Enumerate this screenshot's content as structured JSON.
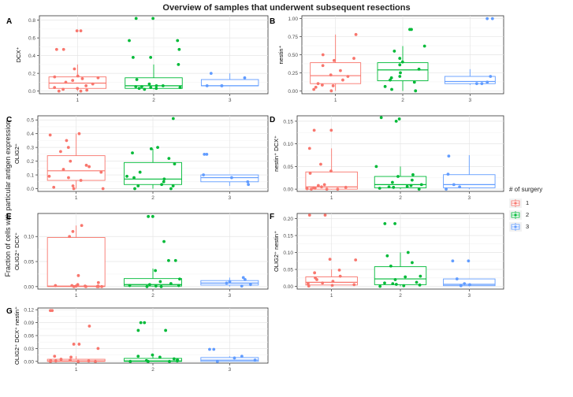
{
  "title": "Overview of samples that underwent subsequent resections",
  "shared_ylabel": "Fraction of cells with particular antigen expression",
  "legend": {
    "title": "# of surgery",
    "items": [
      {
        "label": "1",
        "color": "#F8766D"
      },
      {
        "label": "2",
        "color": "#00BA38"
      },
      {
        "label": "3",
        "color": "#619CFF"
      }
    ]
  },
  "chart_data": [
    {
      "type": "box",
      "panel": "A",
      "ylabel": "DCX⁺",
      "categories": [
        "1",
        "2",
        "3"
      ],
      "ylim": [
        -0.03,
        0.85
      ],
      "yticks": [
        0.0,
        0.2,
        0.4,
        0.6,
        0.8
      ],
      "ytick_labels": [
        "0.0",
        "0.2",
        "0.4",
        "0.6",
        "0.8"
      ],
      "boxes": [
        {
          "q1": 0.03,
          "median": 0.09,
          "q3": 0.16,
          "whisker_low": 0.0,
          "whisker_high": 0.3
        },
        {
          "q1": 0.03,
          "median": 0.06,
          "q3": 0.15,
          "whisker_low": 0.02,
          "whisker_high": 0.3
        },
        {
          "q1": 0.06,
          "median": 0.06,
          "q3": 0.13,
          "whisker_low": 0.06,
          "whisker_high": 0.2
        }
      ],
      "points": [
        [
          0.68,
          0.68,
          0.47,
          0.47,
          0.25,
          0.17,
          0.16,
          0.15,
          0.14,
          0.12,
          0.1,
          0.08,
          0.06,
          0.04,
          0.03,
          0.02,
          0.01,
          0.0,
          0.0
        ],
        [
          0.82,
          0.82,
          0.57,
          0.57,
          0.47,
          0.38,
          0.38,
          0.3,
          0.13,
          0.08,
          0.06,
          0.06,
          0.05,
          0.05,
          0.04,
          0.04,
          0.03,
          0.03,
          0.02
        ],
        [
          0.2,
          0.15,
          0.06,
          0.06,
          0.06
        ]
      ]
    },
    {
      "type": "box",
      "panel": "B",
      "ylabel": "nestin⁺",
      "categories": [
        "1",
        "2",
        "3"
      ],
      "ylim": [
        -0.04,
        1.04
      ],
      "yticks": [
        0.0,
        0.25,
        0.5,
        0.75,
        1.0
      ],
      "ytick_labels": [
        "0.00",
        "0.25",
        "0.50",
        "0.75",
        "1.00"
      ],
      "boxes": [
        {
          "q1": 0.1,
          "median": 0.21,
          "q3": 0.39,
          "whisker_low": 0.0,
          "whisker_high": 0.78
        },
        {
          "q1": 0.14,
          "median": 0.29,
          "q3": 0.39,
          "whisker_low": 0.0,
          "whisker_high": 0.62
        },
        {
          "q1": 0.1,
          "median": 0.13,
          "q3": 0.2,
          "whisker_low": 0.08,
          "whisker_high": 0.3
        }
      ],
      "points": [
        [
          0.78,
          0.5,
          0.45,
          0.42,
          0.35,
          0.28,
          0.22,
          0.2,
          0.15,
          0.1,
          0.08,
          0.07,
          0.05,
          0.02,
          0.0
        ],
        [
          0.85,
          0.85,
          0.62,
          0.55,
          0.45,
          0.4,
          0.36,
          0.3,
          0.25,
          0.2,
          0.18,
          0.15,
          0.12,
          0.06,
          0.02,
          0.0
        ],
        [
          1.0,
          1.0,
          0.2,
          0.12,
          0.1,
          0.1
        ]
      ]
    },
    {
      "type": "box",
      "panel": "C",
      "ylabel": "OLIG2⁺",
      "categories": [
        "1",
        "2",
        "3"
      ],
      "ylim": [
        -0.02,
        0.53
      ],
      "yticks": [
        0.0,
        0.1,
        0.2,
        0.3,
        0.4,
        0.5
      ],
      "ytick_labels": [
        "0.0",
        "0.1",
        "0.2",
        "0.3",
        "0.4",
        "0.5"
      ],
      "boxes": [
        {
          "q1": 0.06,
          "median": 0.13,
          "q3": 0.24,
          "whisker_low": 0.0,
          "whisker_high": 0.4
        },
        {
          "q1": 0.03,
          "median": 0.07,
          "q3": 0.19,
          "whisker_low": 0.0,
          "whisker_high": 0.29
        },
        {
          "q1": 0.05,
          "median": 0.08,
          "q3": 0.1,
          "whisker_low": 0.02,
          "whisker_high": 0.1
        }
      ],
      "points": [
        [
          0.4,
          0.39,
          0.35,
          0.3,
          0.27,
          0.2,
          0.17,
          0.16,
          0.14,
          0.12,
          0.09,
          0.08,
          0.06,
          0.02,
          0.01,
          0.0,
          0.0
        ],
        [
          0.51,
          0.3,
          0.29,
          0.26,
          0.22,
          0.18,
          0.12,
          0.09,
          0.08,
          0.07,
          0.05,
          0.03,
          0.02,
          0.02,
          0.0,
          0.0
        ],
        [
          0.25,
          0.25,
          0.1,
          0.08,
          0.05,
          0.03
        ]
      ]
    },
    {
      "type": "box",
      "panel": "D",
      "ylabel": "nestin⁺ DCX⁺",
      "categories": [
        "1",
        "2",
        "3"
      ],
      "ylim": [
        -0.005,
        0.162
      ],
      "yticks": [
        0.0,
        0.05,
        0.1,
        0.15
      ],
      "ytick_labels": [
        "0.00",
        "0.05",
        "0.10",
        "0.15"
      ],
      "boxes": [
        {
          "q1": 0.0,
          "median": 0.005,
          "q3": 0.038,
          "whisker_low": 0.0,
          "whisker_high": 0.09
        },
        {
          "q1": 0.003,
          "median": 0.01,
          "q3": 0.028,
          "whisker_low": 0.0,
          "whisker_high": 0.05
        },
        {
          "q1": 0.003,
          "median": 0.01,
          "q3": 0.032,
          "whisker_low": 0.0,
          "whisker_high": 0.075
        }
      ],
      "points": [
        [
          0.13,
          0.13,
          0.09,
          0.055,
          0.04,
          0.035,
          0.01,
          0.008,
          0.005,
          0.004,
          0.003,
          0.002,
          0.001,
          0.0,
          0.0,
          0.0
        ],
        [
          0.158,
          0.155,
          0.15,
          0.05,
          0.032,
          0.028,
          0.02,
          0.015,
          0.01,
          0.008,
          0.006,
          0.005,
          0.004,
          0.002,
          0.0
        ],
        [
          0.073,
          0.033,
          0.01,
          0.005,
          0.0
        ]
      ]
    },
    {
      "type": "box",
      "panel": "E",
      "ylabel": "OLIG2⁺ DCX⁺",
      "categories": [
        "1",
        "2",
        "3"
      ],
      "ylim": [
        -0.005,
        0.146
      ],
      "yticks": [
        0.0,
        0.05,
        0.1
      ],
      "ytick_labels": [
        "0.00",
        "0.05",
        "0.10"
      ],
      "boxes": [
        {
          "q1": 0.0,
          "median": 0.001,
          "q3": 0.098,
          "whisker_low": 0.0,
          "whisker_high": 0.122
        },
        {
          "q1": 0.001,
          "median": 0.004,
          "q3": 0.016,
          "whisker_low": 0.0,
          "whisker_high": 0.036
        },
        {
          "q1": 0.003,
          "median": 0.007,
          "q3": 0.012,
          "whisker_low": 0.0,
          "whisker_high": 0.018
        }
      ],
      "points": [
        [
          0.122,
          0.11,
          0.1,
          0.022,
          0.008,
          0.004,
          0.002,
          0.002,
          0.001,
          0.001,
          0.001,
          0.0,
          0.0,
          0.0,
          0.0,
          0.0
        ],
        [
          0.14,
          0.14,
          0.09,
          0.052,
          0.052,
          0.032,
          0.015,
          0.01,
          0.006,
          0.004,
          0.002,
          0.002,
          0.001,
          0.0,
          0.0
        ],
        [
          0.018,
          0.014,
          0.01,
          0.007,
          0.004,
          0.001
        ]
      ]
    },
    {
      "type": "box",
      "panel": "F",
      "ylabel": "OLIG2⁺ nestin⁺",
      "categories": [
        "1",
        "2",
        "3"
      ],
      "ylim": [
        -0.008,
        0.215
      ],
      "yticks": [
        0.0,
        0.05,
        0.1,
        0.15,
        0.2
      ],
      "ytick_labels": [
        "0.00",
        "0.05",
        "0.10",
        "0.15",
        "0.20"
      ],
      "boxes": [
        {
          "q1": 0.004,
          "median": 0.012,
          "q3": 0.028,
          "whisker_low": 0.0,
          "whisker_high": 0.05
        },
        {
          "q1": 0.005,
          "median": 0.022,
          "q3": 0.058,
          "whisker_low": 0.0,
          "whisker_high": 0.1
        },
        {
          "q1": 0.002,
          "median": 0.006,
          "q3": 0.022,
          "whisker_low": 0.0,
          "whisker_high": 0.022
        }
      ],
      "points": [
        [
          0.21,
          0.21,
          0.08,
          0.078,
          0.048,
          0.04,
          0.03,
          0.025,
          0.02,
          0.015,
          0.01,
          0.008,
          0.005,
          0.003,
          0.001
        ],
        [
          0.185,
          0.185,
          0.1,
          0.09,
          0.07,
          0.06,
          0.03,
          0.028,
          0.02,
          0.012,
          0.01,
          0.008,
          0.006,
          0.004,
          0.002,
          0.0
        ],
        [
          0.075,
          0.075,
          0.022,
          0.008,
          0.005,
          0.002
        ]
      ]
    },
    {
      "type": "box",
      "panel": "G",
      "ylabel": "OLIG2⁺ DCX⁺ nestin⁺",
      "categories": [
        "1",
        "2",
        "3"
      ],
      "ylim": [
        -0.004,
        0.124
      ],
      "yticks": [
        0.0,
        0.03,
        0.06,
        0.09,
        0.12
      ],
      "ytick_labels": [
        "0.00",
        "0.03",
        "0.06",
        "0.09",
        "0.12"
      ],
      "boxes": [
        {
          "q1": 0.0,
          "median": 0.001,
          "q3": 0.005,
          "whisker_low": 0.0,
          "whisker_high": 0.012
        },
        {
          "q1": 0.0,
          "median": 0.001,
          "q3": 0.007,
          "whisker_low": 0.0,
          "whisker_high": 0.015
        },
        {
          "q1": 0.0,
          "median": 0.003,
          "q3": 0.009,
          "whisker_low": 0.0,
          "whisker_high": 0.012
        }
      ],
      "points": [
        [
          0.118,
          0.118,
          0.082,
          0.04,
          0.04,
          0.03,
          0.012,
          0.01,
          0.005,
          0.003,
          0.002,
          0.001,
          0.001,
          0.0,
          0.0,
          0.0
        ],
        [
          0.09,
          0.09,
          0.072,
          0.072,
          0.015,
          0.012,
          0.01,
          0.006,
          0.004,
          0.002,
          0.001,
          0.0,
          0.0,
          0.0
        ],
        [
          0.028,
          0.028,
          0.012,
          0.008,
          0.003,
          0.0
        ]
      ]
    }
  ]
}
